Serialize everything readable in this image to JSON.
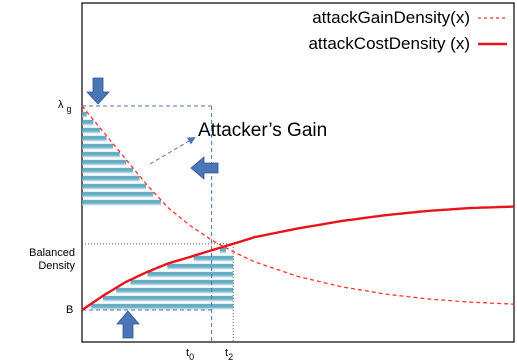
{
  "chart_data": {
    "type": "line",
    "title": "",
    "xlabel": "",
    "ylabel": "",
    "xlim": [
      0,
      10
    ],
    "ylim": [
      0,
      10
    ],
    "series": [
      {
        "name": "attackGainDensity(x)",
        "style": "dashed",
        "color": "#ff3333",
        "x": [
          0,
          0.5,
          1,
          1.5,
          2,
          2.5,
          3,
          3.5,
          4,
          5,
          6,
          7,
          8,
          9,
          10
        ],
        "y": [
          7,
          6.1,
          5.2,
          4.3,
          3.5,
          2.9,
          2.4,
          2.0,
          1.65,
          1.15,
          0.8,
          0.55,
          0.38,
          0.27,
          0.2
        ]
      },
      {
        "name": "attackCostDensity (x)",
        "style": "solid",
        "color": "#e8141c",
        "x": [
          0,
          0.5,
          1,
          1.5,
          2,
          2.5,
          3,
          3.5,
          4,
          5,
          6,
          7,
          8,
          9,
          10
        ],
        "y": [
          0,
          0.5,
          0.95,
          1.3,
          1.6,
          1.82,
          2.05,
          2.27,
          2.5,
          2.8,
          3.05,
          3.25,
          3.4,
          3.5,
          3.55
        ]
      }
    ],
    "y_tick_labels": {
      "lambda": "λ",
      "lambda_sub": "g",
      "balanced_line1": "Balanced",
      "balanced_line2": "Density",
      "b": "B"
    },
    "x_tick_labels": {
      "t0": "t",
      "t0_sub": "0",
      "t2": "t",
      "t2_sub": "2"
    },
    "markers": {
      "lambda_y": 7.0,
      "balanced_y": 2.27,
      "b_y": 0.0,
      "t0_x": 3.0,
      "t2_x": 3.5
    },
    "shading": {
      "fill_color": "#4aa0b8",
      "x_max": 3.5,
      "region_top": "attackGainDensity",
      "region_bottom": "attackCostDensity"
    },
    "annotations": {
      "attackers_gain": "Attacker’s Gain"
    },
    "arrow_color": "#4a76b8",
    "legend": {
      "placement": "top-right"
    },
    "grid": false
  }
}
